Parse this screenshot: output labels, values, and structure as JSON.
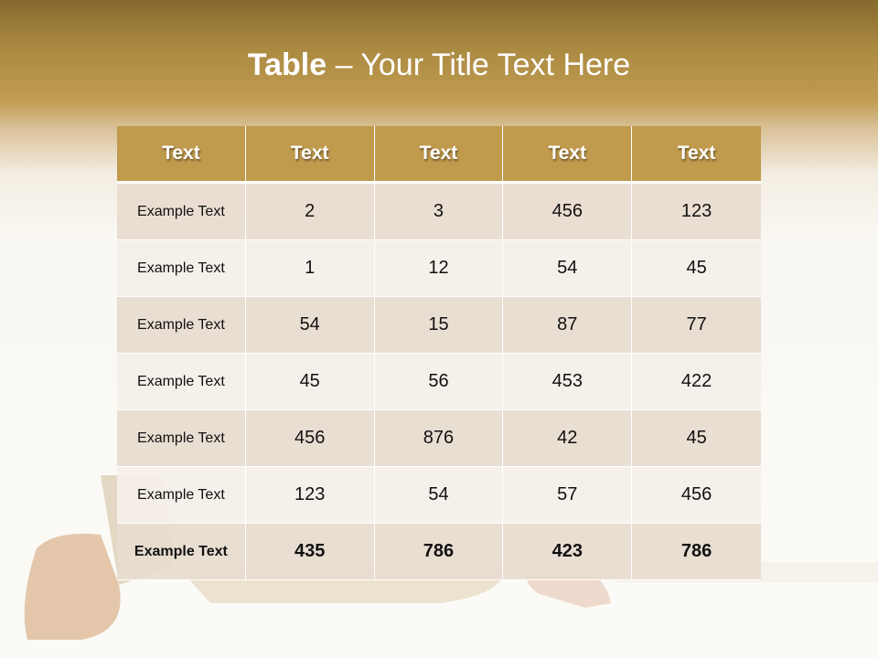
{
  "slide": {
    "title_bold": "Table",
    "title_rest": " – Your Title Text Here"
  },
  "table": {
    "headers": [
      "Text",
      "Text",
      "Text",
      "Text",
      "Text"
    ],
    "rows": [
      [
        "Example Text",
        "2",
        "3",
        "456",
        "123"
      ],
      [
        "Example Text",
        "1",
        "12",
        "54",
        "45"
      ],
      [
        "Example Text",
        "54",
        "15",
        "87",
        "77"
      ],
      [
        "Example Text",
        "45",
        "56",
        "453",
        "422"
      ],
      [
        "Example Text",
        "456",
        "876",
        "42",
        "45"
      ],
      [
        "Example Text",
        "123",
        "54",
        "57",
        "456"
      ],
      [
        "Example Text",
        "435",
        "786",
        "423",
        "786"
      ]
    ]
  },
  "colors": {
    "header": "#c09a4d",
    "band_top": "#86692f",
    "row_dark": "#e8dcd0",
    "row_light": "#f4efe9"
  }
}
